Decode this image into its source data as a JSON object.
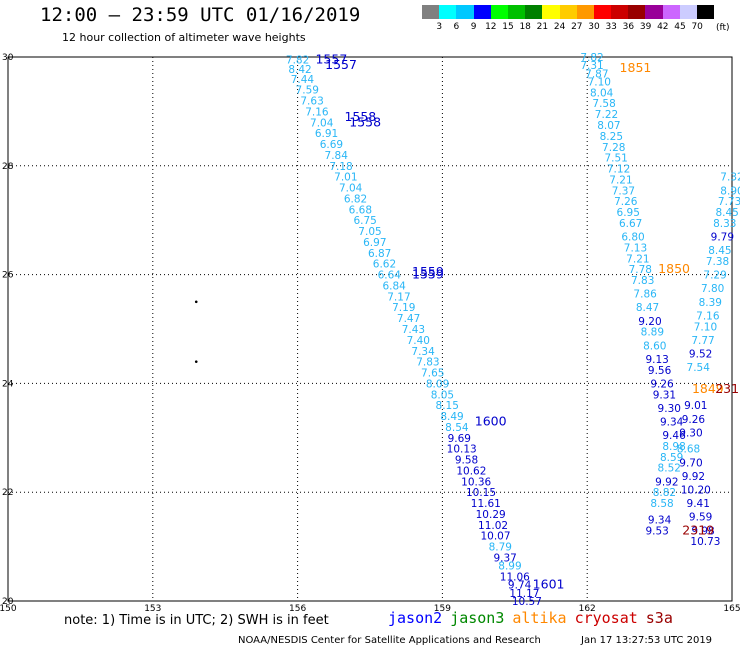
{
  "header": {
    "title": "12:00 – 23:59 UTC 01/16/2019",
    "subtitle": "12 hour collection of altimeter wave heights"
  },
  "legend": {
    "unit": "(ft)",
    "colors": [
      "#808080",
      "#00ffff",
      "#00c8ff",
      "#0000ff",
      "#00ff00",
      "#00c000",
      "#008000",
      "#ffff00",
      "#ffcc00",
      "#ff9900",
      "#ff0000",
      "#cc0000",
      "#990000",
      "#990099",
      "#cc66ff",
      "#ccccff",
      "#000000"
    ],
    "labels": [
      "3",
      "6",
      "9",
      "12",
      "15",
      "18",
      "21",
      "24",
      "27",
      "30",
      "33",
      "36",
      "39",
      "42",
      "45",
      "70"
    ]
  },
  "axes": {
    "y_ticks": [
      "30",
      "28",
      "26",
      "24",
      "22",
      "20"
    ],
    "x_ticks": [
      "150",
      "153",
      "156",
      "159",
      "162",
      "165"
    ]
  },
  "chart_data": {
    "type": "scatter",
    "map": {
      "lon_range": [
        150,
        165
      ],
      "lat_range": [
        20,
        30
      ],
      "grid": true
    },
    "swh_color_scale": {
      "cyan_below": 9,
      "blue_from": 9
    },
    "tracks": [
      {
        "id": "track-a",
        "color": "#29b6f6",
        "pass_labels": [
          {
            "time": "1557",
            "lon": 156.7,
            "lat": 29.95,
            "color": "#0000cc"
          },
          {
            "time": "1557",
            "lon": 156.9,
            "lat": 29.85,
            "color": "#0000cc"
          },
          {
            "time": "1558",
            "lon": 157.3,
            "lat": 28.9,
            "color": "#0000cc"
          },
          {
            "time": "1558",
            "lon": 157.4,
            "lat": 28.8,
            "color": "#0000cc"
          },
          {
            "time": "1559",
            "lon": 158.7,
            "lat": 26.05,
            "color": "#0000cc"
          },
          {
            "time": "1559",
            "lon": 158.7,
            "lat": 26.0,
            "color": "#0000cc"
          },
          {
            "time": "1600",
            "lon": 160.0,
            "lat": 23.3,
            "color": "#0000cc"
          },
          {
            "time": "1601",
            "lon": 161.2,
            "lat": 20.3,
            "color": "#0000cc"
          }
        ],
        "points": [
          {
            "lat": 29.95,
            "lon": 156.0,
            "swh": 7.82
          },
          {
            "lat": 29.78,
            "lon": 156.05,
            "swh": 8.42
          },
          {
            "lat": 29.6,
            "lon": 156.1,
            "swh": 7.44
          },
          {
            "lat": 29.4,
            "lon": 156.2,
            "swh": 7.59
          },
          {
            "lat": 29.2,
            "lon": 156.3,
            "swh": 7.63
          },
          {
            "lat": 29.0,
            "lon": 156.4,
            "swh": 7.16
          },
          {
            "lat": 28.8,
            "lon": 156.5,
            "swh": 7.04
          },
          {
            "lat": 28.6,
            "lon": 156.6,
            "swh": 6.91
          },
          {
            "lat": 28.4,
            "lon": 156.7,
            "swh": 6.69
          },
          {
            "lat": 28.2,
            "lon": 156.8,
            "swh": 7.84
          },
          {
            "lat": 28.0,
            "lon": 156.9,
            "swh": 7.18
          },
          {
            "lat": 27.8,
            "lon": 157.0,
            "swh": 7.01
          },
          {
            "lat": 27.6,
            "lon": 157.1,
            "swh": 7.04
          },
          {
            "lat": 27.4,
            "lon": 157.2,
            "swh": 6.82
          },
          {
            "lat": 27.2,
            "lon": 157.3,
            "swh": 6.68
          },
          {
            "lat": 27.0,
            "lon": 157.4,
            "swh": 6.75
          },
          {
            "lat": 26.8,
            "lon": 157.5,
            "swh": 7.05
          },
          {
            "lat": 26.6,
            "lon": 157.6,
            "swh": 6.97
          },
          {
            "lat": 26.4,
            "lon": 157.7,
            "swh": 6.87
          },
          {
            "lat": 26.2,
            "lon": 157.8,
            "swh": 6.62
          },
          {
            "lat": 26.0,
            "lon": 157.9,
            "swh": 6.64
          },
          {
            "lat": 25.8,
            "lon": 158.0,
            "swh": 6.84
          },
          {
            "lat": 25.6,
            "lon": 158.1,
            "swh": 7.17
          },
          {
            "lat": 25.4,
            "lon": 158.2,
            "swh": 7.19
          },
          {
            "lat": 25.2,
            "lon": 158.3,
            "swh": 7.47
          },
          {
            "lat": 25.0,
            "lon": 158.4,
            "swh": 7.43
          },
          {
            "lat": 24.8,
            "lon": 158.5,
            "swh": 7.4
          },
          {
            "lat": 24.6,
            "lon": 158.6,
            "swh": 7.34
          },
          {
            "lat": 24.4,
            "lon": 158.7,
            "swh": 7.83
          },
          {
            "lat": 24.2,
            "lon": 158.8,
            "swh": 7.65
          },
          {
            "lat": 24.0,
            "lon": 158.9,
            "swh": 8.09
          },
          {
            "lat": 23.8,
            "lon": 159.0,
            "swh": 8.05
          },
          {
            "lat": 23.6,
            "lon": 159.1,
            "swh": 8.15
          },
          {
            "lat": 23.4,
            "lon": 159.2,
            "swh": 8.49
          },
          {
            "lat": 23.2,
            "lon": 159.3,
            "swh": 8.54
          },
          {
            "lat": 23.0,
            "lon": 159.35,
            "swh": 9.69
          },
          {
            "lat": 22.8,
            "lon": 159.4,
            "swh": 10.13
          },
          {
            "lat": 22.6,
            "lon": 159.5,
            "swh": 9.58
          },
          {
            "lat": 22.4,
            "lon": 159.6,
            "swh": 10.62
          },
          {
            "lat": 22.2,
            "lon": 159.7,
            "swh": 10.36
          },
          {
            "lat": 22.0,
            "lon": 159.8,
            "swh": 10.15
          },
          {
            "lat": 21.8,
            "lon": 159.9,
            "swh": 11.61
          },
          {
            "lat": 21.6,
            "lon": 160.0,
            "swh": 10.29
          },
          {
            "lat": 21.4,
            "lon": 160.05,
            "swh": 11.02
          },
          {
            "lat": 21.2,
            "lon": 160.1,
            "swh": 10.07
          },
          {
            "lat": 21.0,
            "lon": 160.2,
            "swh": 8.79
          },
          {
            "lat": 20.8,
            "lon": 160.3,
            "swh": 9.37
          },
          {
            "lat": 20.65,
            "lon": 160.4,
            "swh": 8.99
          },
          {
            "lat": 20.45,
            "lon": 160.5,
            "swh": 11.06
          },
          {
            "lat": 20.3,
            "lon": 160.6,
            "swh": 9.74
          },
          {
            "lat": 20.15,
            "lon": 160.7,
            "swh": 11.17
          },
          {
            "lat": 20.0,
            "lon": 160.75,
            "swh": 10.57
          }
        ]
      },
      {
        "id": "track-b",
        "color": "#29b6f6",
        "pass_labels": [
          {
            "time": "1851",
            "lon": 163.0,
            "lat": 29.8,
            "color": "#ff8800"
          },
          {
            "time": "1850",
            "lon": 163.8,
            "lat": 26.1,
            "color": "#ff8800"
          }
        ],
        "points": [
          {
            "lat": 30.0,
            "lon": 162.1,
            "swh": 7.82
          },
          {
            "lat": 29.85,
            "lon": 162.1,
            "swh": 7.31
          },
          {
            "lat": 29.7,
            "lon": 162.2,
            "swh": 7.87
          },
          {
            "lat": 29.55,
            "lon": 162.25,
            "swh": 7.1
          },
          {
            "lat": 29.35,
            "lon": 162.3,
            "swh": 8.04
          },
          {
            "lat": 29.15,
            "lon": 162.35,
            "swh": 7.58
          },
          {
            "lat": 28.95,
            "lon": 162.4,
            "swh": 7.22
          },
          {
            "lat": 28.75,
            "lon": 162.45,
            "swh": 8.07
          },
          {
            "lat": 28.55,
            "lon": 162.5,
            "swh": 8.25
          },
          {
            "lat": 28.35,
            "lon": 162.55,
            "swh": 7.28
          },
          {
            "lat": 28.15,
            "lon": 162.6,
            "swh": 7.51
          },
          {
            "lat": 27.95,
            "lon": 162.65,
            "swh": 7.12
          },
          {
            "lat": 27.75,
            "lon": 162.7,
            "swh": 7.21
          },
          {
            "lat": 27.55,
            "lon": 162.75,
            "swh": 7.37
          },
          {
            "lat": 27.35,
            "lon": 162.8,
            "swh": 7.26
          },
          {
            "lat": 27.15,
            "lon": 162.85,
            "swh": 6.95
          },
          {
            "lat": 26.95,
            "lon": 162.9,
            "swh": 6.67
          },
          {
            "lat": 26.7,
            "lon": 162.95,
            "swh": 6.8
          },
          {
            "lat": 26.5,
            "lon": 163.0,
            "swh": 7.13
          },
          {
            "lat": 26.3,
            "lon": 163.05,
            "swh": 7.21
          },
          {
            "lat": 26.1,
            "lon": 163.1,
            "swh": 7.78
          },
          {
            "lat": 25.9,
            "lon": 163.15,
            "swh": 7.83
          },
          {
            "lat": 25.65,
            "lon": 163.2,
            "swh": 7.86
          },
          {
            "lat": 25.4,
            "lon": 163.25,
            "swh": 8.47
          },
          {
            "lat": 25.15,
            "lon": 163.3,
            "swh": 9.2
          },
          {
            "lat": 24.95,
            "lon": 163.35,
            "swh": 8.89
          },
          {
            "lat": 24.7,
            "lon": 163.4,
            "swh": 8.6
          },
          {
            "lat": 24.45,
            "lon": 163.45,
            "swh": 9.13
          },
          {
            "lat": 24.25,
            "lon": 163.5,
            "swh": 9.56
          },
          {
            "lat": 24.0,
            "lon": 163.55,
            "swh": 9.26
          },
          {
            "lat": 23.8,
            "lon": 163.6,
            "swh": 9.31
          },
          {
            "lat": 23.55,
            "lon": 163.7,
            "swh": 9.3
          },
          {
            "lat": 23.3,
            "lon": 163.75,
            "swh": 9.34
          },
          {
            "lat": 23.05,
            "lon": 163.8,
            "swh": 9.46
          },
          {
            "lat": 22.85,
            "lon": 163.8,
            "swh": 8.98
          },
          {
            "lat": 22.65,
            "lon": 163.75,
            "swh": 8.59
          },
          {
            "lat": 22.45,
            "lon": 163.7,
            "swh": 8.52
          },
          {
            "lat": 22.2,
            "lon": 163.65,
            "swh": 9.92
          },
          {
            "lat": 22.0,
            "lon": 163.6,
            "swh": 8.82
          },
          {
            "lat": 21.8,
            "lon": 163.55,
            "swh": 8.58
          },
          {
            "lat": 21.5,
            "lon": 163.5,
            "swh": 9.34
          },
          {
            "lat": 21.3,
            "lon": 163.45,
            "swh": 9.53
          }
        ]
      },
      {
        "id": "track-c",
        "color": "#29b6f6",
        "pass_labels": [
          {
            "time": "1849",
            "lon": 164.5,
            "lat": 23.9,
            "color": "#ff8800"
          },
          {
            "time": "2319",
            "lon": 164.3,
            "lat": 21.3,
            "color": "#990000"
          },
          {
            "time": "231",
            "lon": 164.9,
            "lat": 23.9,
            "color": "#990000"
          }
        ],
        "points": [
          {
            "lat": 27.8,
            "lon": 165.0,
            "swh": 7.32
          },
          {
            "lat": 27.55,
            "lon": 165.0,
            "swh": 8.9
          },
          {
            "lat": 27.35,
            "lon": 164.95,
            "swh": 7.73
          },
          {
            "lat": 27.15,
            "lon": 164.9,
            "swh": 8.45
          },
          {
            "lat": 26.95,
            "lon": 164.85,
            "swh": 8.33
          },
          {
            "lat": 26.7,
            "lon": 164.8,
            "swh": 9.79
          },
          {
            "lat": 26.45,
            "lon": 164.75,
            "swh": 8.45
          },
          {
            "lat": 26.25,
            "lon": 164.7,
            "swh": 7.38
          },
          {
            "lat": 26.0,
            "lon": 164.65,
            "swh": 7.29
          },
          {
            "lat": 25.75,
            "lon": 164.6,
            "swh": 7.8
          },
          {
            "lat": 25.5,
            "lon": 164.55,
            "swh": 8.39
          },
          {
            "lat": 25.25,
            "lon": 164.5,
            "swh": 7.16
          },
          {
            "lat": 25.05,
            "lon": 164.45,
            "swh": 7.1
          },
          {
            "lat": 24.8,
            "lon": 164.4,
            "swh": 7.77
          },
          {
            "lat": 24.55,
            "lon": 164.35,
            "swh": 9.52
          },
          {
            "lat": 24.3,
            "lon": 164.3,
            "swh": 7.54
          },
          {
            "lat": 23.6,
            "lon": 164.25,
            "swh": 9.01
          },
          {
            "lat": 23.35,
            "lon": 164.2,
            "swh": 9.26
          },
          {
            "lat": 23.1,
            "lon": 164.15,
            "swh": 9.3
          },
          {
            "lat": 22.8,
            "lon": 164.1,
            "swh": 8.68
          },
          {
            "lat": 22.55,
            "lon": 164.15,
            "swh": 9.7
          },
          {
            "lat": 22.3,
            "lon": 164.2,
            "swh": 9.92
          },
          {
            "lat": 22.05,
            "lon": 164.25,
            "swh": 10.2
          },
          {
            "lat": 21.8,
            "lon": 164.3,
            "swh": 9.41
          },
          {
            "lat": 21.55,
            "lon": 164.35,
            "swh": 9.59
          },
          {
            "lat": 21.3,
            "lon": 164.4,
            "swh": 9.98
          },
          {
            "lat": 21.1,
            "lon": 164.45,
            "swh": 10.73
          }
        ]
      }
    ],
    "land_dots": [
      {
        "lon": 153.9,
        "lat": 25.5
      },
      {
        "lon": 153.9,
        "lat": 24.4
      }
    ]
  },
  "footer": {
    "note": "note: 1) Time is in UTC; 2) SWH is in feet",
    "satellites": [
      {
        "name": "jason2",
        "color": "#0000ff"
      },
      {
        "name": "jason3",
        "color": "#008800"
      },
      {
        "name": "altika",
        "color": "#ff8800"
      },
      {
        "name": "cryosat",
        "color": "#cc0000"
      },
      {
        "name": "s3a",
        "color": "#990000"
      }
    ],
    "credit": "NOAA/NESDIS Center for Satellite Applications and Research",
    "timestamp": "Jan 17 13:27:53 UTC 2019"
  }
}
